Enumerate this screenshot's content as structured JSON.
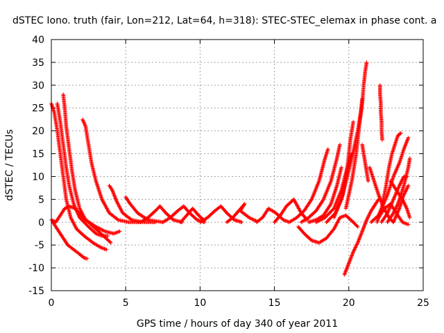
{
  "chart_data": {
    "type": "scatter",
    "title": "dSTEC Iono. truth (fair, Lon=212, Lat=64, h=318): STEC-STEC_elemax in phase cont. a",
    "xlabel": "GPS time / hours of day 340 of year 2011",
    "ylabel": "dSTEC  / TECUs",
    "xlim": [
      0,
      25
    ],
    "ylim": [
      -15,
      40
    ],
    "x_ticks": [
      0,
      5,
      10,
      15,
      20,
      25
    ],
    "y_ticks": [
      -15,
      -10,
      -5,
      0,
      5,
      10,
      15,
      20,
      25,
      30,
      35,
      40
    ],
    "x_tick_labels": [
      "0",
      "5",
      "10",
      "15",
      "20",
      "25"
    ],
    "y_tick_labels": [
      "-15",
      "-10",
      "-5",
      "0",
      "5",
      "10",
      "15",
      "20",
      "25",
      "30",
      "35",
      "40"
    ],
    "grid": true,
    "legend": "none",
    "marker": "plus",
    "series_color": "#ff0000",
    "series": [
      {
        "points": [
          [
            0.0,
            26.0
          ],
          [
            0.2,
            24.0
          ],
          [
            0.4,
            20.0
          ],
          [
            0.6,
            15.0
          ],
          [
            0.8,
            10.0
          ],
          [
            1.0,
            5.0
          ],
          [
            1.3,
            1.0
          ],
          [
            1.7,
            -1.5
          ],
          [
            2.2,
            -3.0
          ],
          [
            2.8,
            -4.5
          ],
          [
            3.3,
            -5.5
          ],
          [
            3.7,
            -6.0
          ]
        ]
      },
      {
        "points": [
          [
            0.4,
            26.0
          ],
          [
            0.6,
            22.0
          ],
          [
            0.8,
            17.0
          ],
          [
            1.0,
            12.0
          ],
          [
            1.2,
            8.0
          ],
          [
            1.5,
            4.0
          ],
          [
            1.9,
            1.0
          ],
          [
            2.5,
            -1.0
          ],
          [
            3.0,
            -2.5
          ],
          [
            3.4,
            -3.0
          ],
          [
            3.8,
            -3.0
          ]
        ]
      },
      {
        "points": [
          [
            0.8,
            28.0
          ],
          [
            0.9,
            25.0
          ],
          [
            1.0,
            21.0
          ],
          [
            1.2,
            16.0
          ],
          [
            1.4,
            11.0
          ],
          [
            1.6,
            7.0
          ],
          [
            1.9,
            3.0
          ],
          [
            2.3,
            0.5
          ],
          [
            3.0,
            -1.0
          ],
          [
            3.6,
            -2.0
          ],
          [
            4.2,
            -2.5
          ],
          [
            4.6,
            -2.0
          ]
        ]
      },
      {
        "points": [
          [
            0.1,
            0.0
          ],
          [
            0.3,
            -1.0
          ],
          [
            0.5,
            -2.0
          ],
          [
            0.8,
            -3.5
          ],
          [
            1.1,
            -5.0
          ],
          [
            1.5,
            -6.0
          ],
          [
            1.9,
            -7.0
          ],
          [
            2.2,
            -7.8
          ],
          [
            2.4,
            -8.0
          ]
        ]
      },
      {
        "points": [
          [
            0.0,
            0.5
          ],
          [
            0.3,
            0.0
          ],
          [
            0.6,
            1.5
          ],
          [
            0.9,
            3.0
          ],
          [
            1.2,
            3.5
          ],
          [
            1.6,
            3.0
          ],
          [
            2.0,
            1.5
          ],
          [
            2.5,
            0.0
          ],
          [
            3.0,
            -1.5
          ],
          [
            3.5,
            -3.0
          ],
          [
            4.0,
            -4.5
          ]
        ]
      },
      {
        "points": [
          [
            2.1,
            22.5
          ],
          [
            2.3,
            21.0
          ],
          [
            2.5,
            17.0
          ],
          [
            2.7,
            13.0
          ],
          [
            3.0,
            9.0
          ],
          [
            3.4,
            5.0
          ],
          [
            3.9,
            2.0
          ],
          [
            4.5,
            0.5
          ],
          [
            5.2,
            0.0
          ],
          [
            6.0,
            0.0
          ]
        ]
      },
      {
        "points": [
          [
            3.9,
            8.0
          ],
          [
            4.1,
            7.0
          ],
          [
            4.4,
            4.5
          ],
          [
            4.8,
            2.0
          ],
          [
            5.4,
            0.5
          ],
          [
            6.2,
            0.0
          ],
          [
            7.0,
            0.0
          ]
        ]
      },
      {
        "points": [
          [
            5.0,
            5.5
          ],
          [
            5.3,
            4.0
          ],
          [
            5.8,
            2.0
          ],
          [
            6.5,
            0.5
          ],
          [
            7.5,
            0.0
          ]
        ]
      },
      {
        "points": [
          [
            6.0,
            0.0
          ],
          [
            6.5,
            1.0
          ],
          [
            7.0,
            2.5
          ],
          [
            7.3,
            3.5
          ],
          [
            7.7,
            2.0
          ],
          [
            8.2,
            0.5
          ],
          [
            8.8,
            0.0
          ]
        ]
      },
      {
        "points": [
          [
            7.5,
            0.0
          ],
          [
            8.0,
            1.0
          ],
          [
            8.5,
            2.5
          ],
          [
            8.9,
            3.5
          ],
          [
            9.3,
            2.0
          ],
          [
            9.8,
            0.5
          ],
          [
            10.3,
            0.0
          ]
        ]
      },
      {
        "points": [
          [
            8.7,
            0.0
          ],
          [
            9.1,
            1.5
          ],
          [
            9.5,
            3.0
          ],
          [
            9.9,
            1.5
          ],
          [
            10.3,
            0.3
          ]
        ]
      },
      {
        "points": [
          [
            10.0,
            0.0
          ],
          [
            10.5,
            1.0
          ],
          [
            11.0,
            2.5
          ],
          [
            11.4,
            3.5
          ],
          [
            11.8,
            2.0
          ],
          [
            12.3,
            0.5
          ],
          [
            12.8,
            0.0
          ]
        ]
      },
      {
        "points": [
          [
            11.8,
            0.0
          ],
          [
            12.2,
            1.0
          ],
          [
            12.6,
            2.5
          ],
          [
            13.0,
            4.0
          ],
          [
            12.7,
            2.5
          ],
          [
            13.3,
            1.0
          ],
          [
            13.8,
            0.2
          ]
        ]
      },
      {
        "points": [
          [
            13.8,
            0.0
          ],
          [
            14.2,
            1.0
          ],
          [
            14.6,
            3.0
          ],
          [
            15.1,
            2.0
          ],
          [
            15.6,
            0.5
          ],
          [
            16.0,
            0.0
          ]
        ]
      },
      {
        "points": [
          [
            15.0,
            0.0
          ],
          [
            15.4,
            1.5
          ],
          [
            15.8,
            3.5
          ],
          [
            16.3,
            5.0
          ],
          [
            16.8,
            2.0
          ],
          [
            17.2,
            0.5
          ]
        ]
      },
      {
        "points": [
          [
            16.0,
            0.0
          ],
          [
            16.5,
            1.0
          ],
          [
            17.0,
            2.5
          ],
          [
            17.5,
            5.0
          ],
          [
            18.0,
            9.0
          ],
          [
            18.4,
            14.0
          ],
          [
            18.6,
            16.0
          ]
        ]
      },
      {
        "points": [
          [
            16.8,
            0.0
          ],
          [
            17.3,
            1.0
          ],
          [
            17.8,
            2.5
          ],
          [
            18.3,
            5.0
          ],
          [
            18.8,
            9.0
          ],
          [
            19.2,
            14.0
          ],
          [
            19.4,
            17.0
          ]
        ]
      },
      {
        "points": [
          [
            17.3,
            0.0
          ],
          [
            17.8,
            0.5
          ],
          [
            18.3,
            1.5
          ],
          [
            18.8,
            4.0
          ],
          [
            19.2,
            8.0
          ],
          [
            19.5,
            12.0
          ]
        ]
      },
      {
        "points": [
          [
            16.6,
            -1.0
          ],
          [
            17.0,
            -2.5
          ],
          [
            17.5,
            -4.0
          ],
          [
            18.0,
            -4.5
          ],
          [
            18.5,
            -3.5
          ],
          [
            19.0,
            -1.5
          ],
          [
            19.4,
            1.0
          ],
          [
            19.8,
            1.5
          ],
          [
            20.3,
            0.0
          ],
          [
            20.6,
            -1.0
          ]
        ]
      },
      {
        "points": [
          [
            17.8,
            0.0
          ],
          [
            18.4,
            1.0
          ],
          [
            19.0,
            3.0
          ],
          [
            19.5,
            7.0
          ],
          [
            19.9,
            12.0
          ],
          [
            20.2,
            15.0
          ]
        ]
      },
      {
        "points": [
          [
            18.5,
            0.0
          ],
          [
            19.1,
            2.0
          ],
          [
            19.6,
            6.0
          ],
          [
            19.9,
            12.0
          ],
          [
            20.1,
            18.0
          ],
          [
            20.3,
            22.0
          ]
        ]
      },
      {
        "points": [
          [
            19.0,
            1.0
          ],
          [
            19.5,
            5.0
          ],
          [
            19.9,
            10.0
          ],
          [
            20.2,
            14.0
          ],
          [
            20.4,
            17.0
          ],
          [
            20.6,
            20.0
          ],
          [
            20.8,
            24.0
          ],
          [
            20.9,
            27.0
          ]
        ]
      },
      {
        "points": [
          [
            19.8,
            3.0
          ],
          [
            20.2,
            9.0
          ],
          [
            20.5,
            15.0
          ],
          [
            20.7,
            21.0
          ],
          [
            20.9,
            26.0
          ],
          [
            21.0,
            30.0
          ],
          [
            21.1,
            33.0
          ],
          [
            21.2,
            35.0
          ]
        ]
      },
      {
        "points": [
          [
            19.7,
            -11.5
          ],
          [
            20.0,
            -9.0
          ],
          [
            20.3,
            -6.5
          ],
          [
            20.6,
            -4.5
          ],
          [
            20.9,
            -2.0
          ],
          [
            21.2,
            0.5
          ],
          [
            21.5,
            2.5
          ],
          [
            21.8,
            4.0
          ],
          [
            22.0,
            5.0
          ]
        ]
      },
      {
        "points": [
          [
            21.4,
            12.0
          ],
          [
            21.6,
            10.0
          ],
          [
            21.8,
            8.0
          ],
          [
            22.0,
            6.0
          ],
          [
            22.3,
            3.5
          ],
          [
            22.7,
            1.0
          ],
          [
            23.0,
            0.0
          ]
        ]
      },
      {
        "points": [
          [
            20.9,
            17.0
          ],
          [
            21.0,
            15.0
          ],
          [
            21.1,
            13.0
          ],
          [
            21.2,
            11.0
          ],
          [
            21.3,
            9.0
          ]
        ]
      },
      {
        "points": [
          [
            22.1,
            30.0
          ],
          [
            22.1,
            28.0
          ],
          [
            22.15,
            26.0
          ],
          [
            22.15,
            24.0
          ],
          [
            22.2,
            22.0
          ],
          [
            22.2,
            20.0
          ],
          [
            22.25,
            18.0
          ]
        ]
      },
      {
        "points": [
          [
            21.9,
            0.0
          ],
          [
            22.2,
            3.0
          ],
          [
            22.5,
            8.0
          ],
          [
            22.7,
            12.0
          ],
          [
            22.9,
            15.0
          ],
          [
            23.1,
            17.0
          ],
          [
            23.3,
            19.0
          ],
          [
            23.5,
            19.5
          ]
        ]
      },
      {
        "points": [
          [
            22.2,
            0.0
          ],
          [
            22.6,
            2.0
          ],
          [
            23.0,
            5.0
          ],
          [
            23.4,
            8.0
          ],
          [
            23.7,
            10.0
          ],
          [
            23.9,
            10.0
          ]
        ]
      },
      {
        "points": [
          [
            22.6,
            0.0
          ],
          [
            23.0,
            2.0
          ],
          [
            23.3,
            4.0
          ],
          [
            23.7,
            8.0
          ],
          [
            24.0,
            12.0
          ],
          [
            24.1,
            14.0
          ]
        ]
      },
      {
        "points": [
          [
            22.0,
            1.0
          ],
          [
            22.4,
            3.0
          ],
          [
            22.8,
            4.0
          ],
          [
            23.2,
            2.0
          ],
          [
            23.6,
            0.0
          ],
          [
            24.0,
            -0.5
          ]
        ]
      },
      {
        "points": [
          [
            22.8,
            9.0
          ],
          [
            23.2,
            7.0
          ],
          [
            23.6,
            5.0
          ],
          [
            23.9,
            3.0
          ],
          [
            24.1,
            1.0
          ]
        ]
      },
      {
        "points": [
          [
            21.5,
            0.0
          ],
          [
            22.0,
            1.5
          ],
          [
            22.6,
            6.0
          ],
          [
            23.0,
            10.0
          ],
          [
            23.4,
            13.0
          ],
          [
            23.7,
            16.0
          ],
          [
            24.0,
            18.5
          ]
        ]
      },
      {
        "points": [
          [
            23.0,
            0.0
          ],
          [
            23.4,
            3.0
          ],
          [
            23.7,
            6.0
          ],
          [
            24.0,
            8.0
          ]
        ]
      }
    ]
  }
}
